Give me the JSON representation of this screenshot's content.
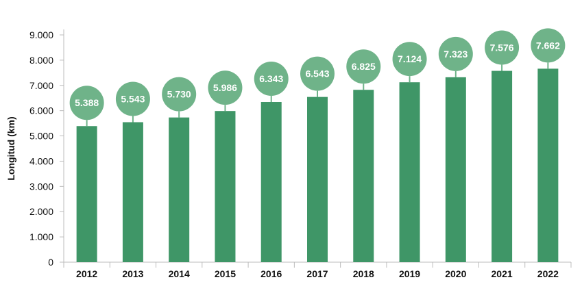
{
  "chart_data": {
    "type": "bar",
    "title": "",
    "xlabel": "",
    "ylabel": "Longitud (km)",
    "categories": [
      "2012",
      "2013",
      "2014",
      "2015",
      "2016",
      "2017",
      "2018",
      "2019",
      "2020",
      "2021",
      "2022"
    ],
    "values": [
      5388,
      5543,
      5730,
      5986,
      6343,
      6543,
      6825,
      7124,
      7323,
      7576,
      7662
    ],
    "data_labels": [
      "5.388",
      "5.543",
      "5.730",
      "5.986",
      "6.343",
      "6.543",
      "6.825",
      "7.124",
      "7.323",
      "7.576",
      "7.662"
    ],
    "ylim": [
      0,
      9000
    ],
    "y_ticks": [
      {
        "value": 0,
        "label": "0"
      },
      {
        "value": 1000,
        "label": "1.000"
      },
      {
        "value": 2000,
        "label": "2.000"
      },
      {
        "value": 3000,
        "label": "3.000"
      },
      {
        "value": 4000,
        "label": "4.000"
      },
      {
        "value": 5000,
        "label": "5.000"
      },
      {
        "value": 6000,
        "label": "6.000"
      },
      {
        "value": 7000,
        "label": "7.000"
      },
      {
        "value": 8000,
        "label": "8.000"
      },
      {
        "value": 9000,
        "label": "9.000"
      }
    ],
    "colors": {
      "bar": "#3f9667",
      "bubble": "#6fb389",
      "stem": "#6fb389",
      "axis": "#bcbcbc",
      "text": "#111111",
      "label_text": "#ffffff"
    }
  }
}
